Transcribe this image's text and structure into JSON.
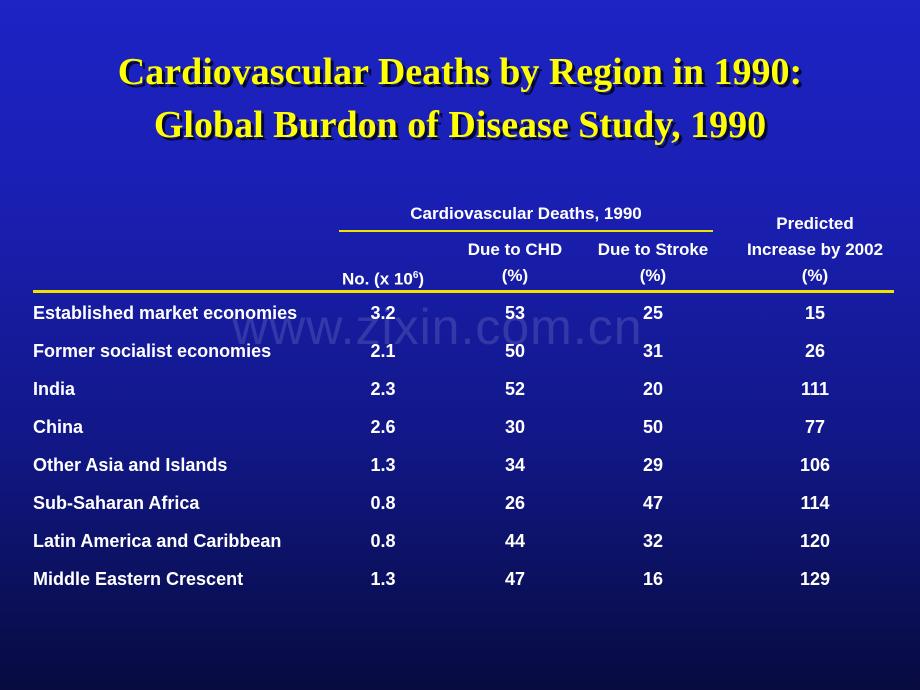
{
  "slide": {
    "title_line1": "Cardiovascular Deaths by Region in 1990:",
    "title_line2": "Global Burdon of Disease Study, 1990"
  },
  "table": {
    "group_header": "Cardiovascular Deaths, 1990",
    "col_no_label": "No. (x 10",
    "col_no_sup": "6",
    "col_no_close": ")",
    "col_chd_line1": "Due to CHD",
    "col_chd_line2": "(%)",
    "col_stroke_line1": "Due to Stroke",
    "col_stroke_line2": "(%)",
    "col_pred_line1": "Predicted",
    "col_pred_line2": "Increase by 2002",
    "col_pred_line3": "(%)",
    "rows": [
      {
        "region": "Established market economies",
        "no": "3.2",
        "chd": "53",
        "stroke": "25",
        "pred": "15"
      },
      {
        "region": "Former socialist economies",
        "no": "2.1",
        "chd": "50",
        "stroke": "31",
        "pred": "26"
      },
      {
        "region": "India",
        "no": "2.3",
        "chd": "52",
        "stroke": "20",
        "pred": "111"
      },
      {
        "region": "China",
        "no": "2.6",
        "chd": "30",
        "stroke": "50",
        "pred": "77"
      },
      {
        "region": "Other Asia and Islands",
        "no": "1.3",
        "chd": "34",
        "stroke": "29",
        "pred": "106"
      },
      {
        "region": "Sub-Saharan Africa",
        "no": "0.8",
        "chd": "26",
        "stroke": "47",
        "pred": "114"
      },
      {
        "region": "Latin America and Caribbean",
        "no": "0.8",
        "chd": "44",
        "stroke": "32",
        "pred": "120"
      },
      {
        "region": "Middle Eastern Crescent",
        "no": "1.3",
        "chd": "47",
        "stroke": "16",
        "pred": "129"
      }
    ]
  },
  "watermark": "www.zixin.com.cn",
  "colors": {
    "title": "#ffff00",
    "rule": "#f2e200",
    "text": "#ffffff",
    "background_top": "#1d23c4",
    "background_bottom": "#070b3f"
  }
}
